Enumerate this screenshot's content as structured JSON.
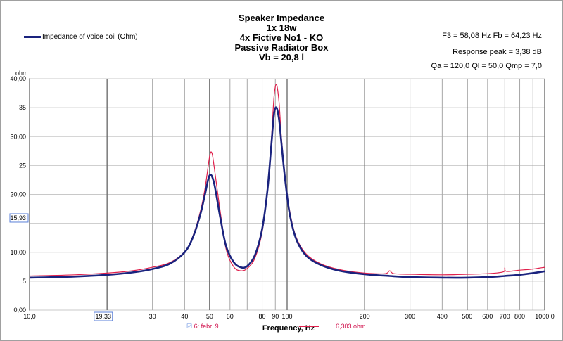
{
  "chart_data": {
    "type": "line",
    "title": [
      "Speaker Impedance",
      "1x 18w",
      "4x Fictive No1 - KO",
      "Passive Radiator Box",
      "Vb = 20,8 l"
    ],
    "info": [
      "F3 = 58,08 Hz  Fb = 64,23 Hz",
      "Response  peak = 3,38 dB",
      "Qa = 120,0  Ql = 50,0  Qmp = 7,0"
    ],
    "xlabel": "Frequency, Hz",
    "ylabel": "ohm",
    "xscale": "log",
    "xlim": [
      10,
      1000
    ],
    "ylim": [
      0,
      40
    ],
    "x_tick_labels": [
      "10,0",
      "19,33",
      "30",
      "40",
      "50",
      "60",
      "80",
      "90",
      "100",
      "200",
      "300",
      "400",
      "500",
      "600",
      "700",
      "800",
      "1000,0"
    ],
    "y_tick_labels": [
      "0,00",
      "5",
      "10,00",
      "15,93",
      "20,00",
      "25",
      "30,00",
      "35",
      "40,00"
    ],
    "legend": {
      "placement": "top-left",
      "entries": [
        "Impedance of voice coil (Ohm)"
      ]
    },
    "grid": true,
    "series": [
      {
        "name": "Impedance of voice coil (Ohm)",
        "color": "#1a237e",
        "x": [
          10,
          15,
          20,
          25,
          30,
          35,
          40,
          43,
          46,
          48,
          50,
          52,
          55,
          58,
          62,
          66,
          70,
          75,
          80,
          84,
          87,
          89,
          91,
          93,
          95,
          98,
          102,
          108,
          118,
          135,
          160,
          200,
          250,
          300,
          400,
          500,
          600,
          700,
          800,
          900,
          1000
        ],
        "y": [
          5.6,
          5.8,
          6.1,
          6.5,
          7.1,
          8.0,
          10.0,
          12.5,
          16.5,
          20.0,
          23.3,
          22.0,
          16.0,
          11.0,
          8.3,
          7.4,
          7.6,
          9.5,
          14.0,
          21.0,
          29.0,
          34.0,
          35.0,
          33.0,
          29.0,
          23.0,
          17.0,
          12.5,
          9.5,
          7.8,
          6.8,
          6.2,
          5.9,
          5.7,
          5.6,
          5.6,
          5.7,
          5.9,
          6.1,
          6.4,
          6.7
        ]
      },
      {
        "name": "",
        "color": "#e0204c",
        "x": [
          10,
          15,
          20,
          25,
          30,
          35,
          40,
          43,
          46,
          48,
          50,
          51,
          52,
          55,
          58,
          62,
          66,
          70,
          75,
          80,
          84,
          87,
          89,
          91,
          93,
          95,
          98,
          102,
          108,
          118,
          135,
          160,
          200,
          240,
          250,
          260,
          300,
          400,
          500,
          600,
          690,
          700,
          710,
          800,
          900,
          1000
        ],
        "y": [
          5.9,
          6.1,
          6.4,
          6.8,
          7.4,
          8.2,
          10.1,
          12.7,
          17.0,
          21.0,
          26.5,
          27.2,
          25.0,
          17.0,
          10.5,
          7.5,
          6.8,
          7.2,
          9.0,
          13.5,
          21.0,
          30.0,
          37.0,
          39.0,
          36.0,
          30.0,
          23.5,
          17.5,
          12.8,
          9.8,
          8.0,
          7.0,
          6.4,
          6.3,
          6.8,
          6.3,
          6.2,
          6.1,
          6.2,
          6.3,
          6.6,
          7.3,
          6.7,
          6.9,
          7.1,
          7.4
        ]
      }
    ],
    "cursor": {
      "x_value": "19,33",
      "y_value": "15,93"
    },
    "status": {
      "left": "6:  febr. 9",
      "right": "6,303 ohm"
    }
  }
}
